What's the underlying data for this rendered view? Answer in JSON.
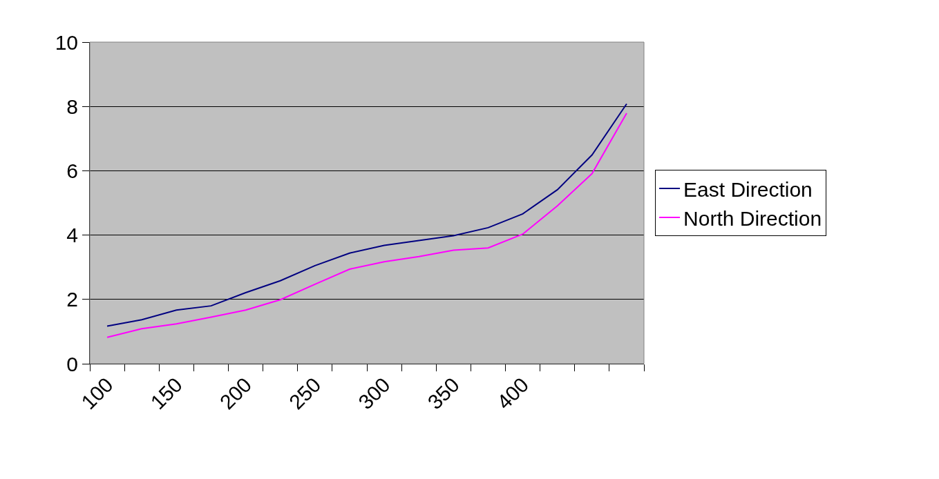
{
  "chart_data": {
    "type": "line",
    "categories": [
      "100",
      null,
      "150",
      null,
      "200",
      null,
      "250",
      null,
      "300",
      null,
      "350",
      null,
      "400",
      null,
      null,
      null
    ],
    "series": [
      {
        "name": "East Direction",
        "color": "#000080",
        "values": [
          1.17,
          1.37,
          1.67,
          1.8,
          2.21,
          2.58,
          3.05,
          3.44,
          3.68,
          3.83,
          3.98,
          4.23,
          4.66,
          5.41,
          6.49,
          8.08
        ]
      },
      {
        "name": "North Direction",
        "color": "#ff00ff",
        "values": [
          0.82,
          1.09,
          1.24,
          1.45,
          1.67,
          1.99,
          2.47,
          2.94,
          3.17,
          3.33,
          3.53,
          3.6,
          4.03,
          4.91,
          5.91,
          7.79
        ]
      }
    ],
    "ylim": [
      0,
      10
    ],
    "yticks": [
      0,
      2,
      4,
      6,
      8,
      10
    ],
    "grid": "y",
    "legend": "right",
    "marker": "none",
    "line_style": "solid"
  }
}
